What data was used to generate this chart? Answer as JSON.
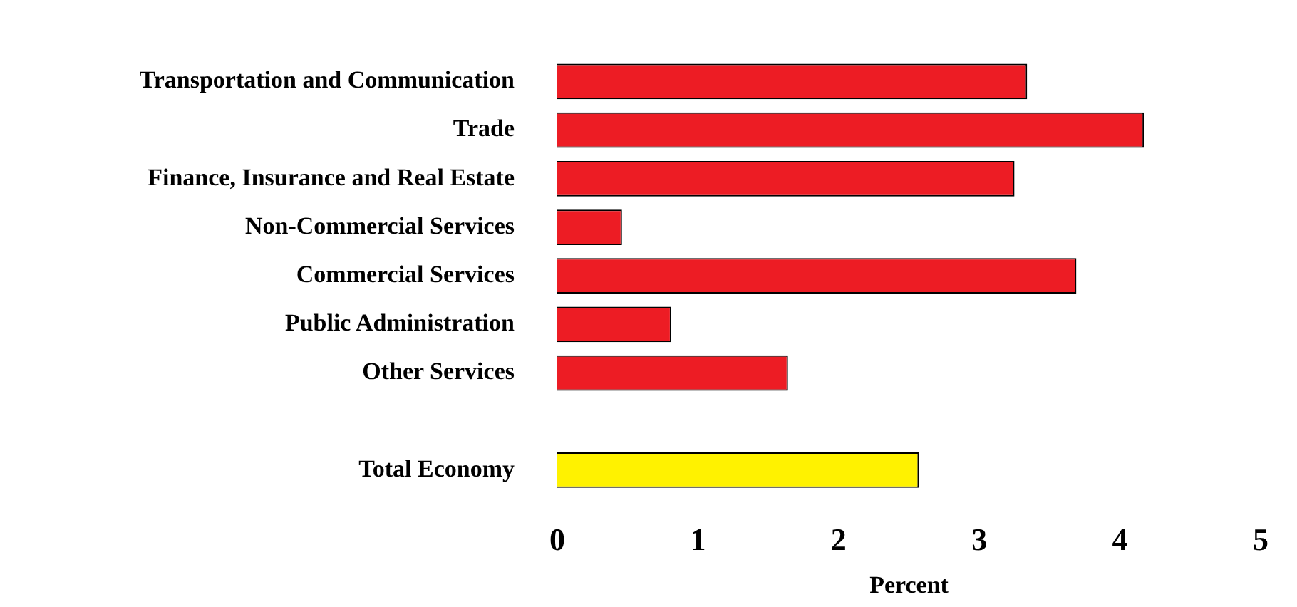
{
  "chart_data": {
    "type": "bar",
    "orientation": "horizontal",
    "xlabel": "Percent",
    "categories": [
      "Transportation and Communication",
      "Trade",
      "Finance, Insurance and Real Estate",
      "Non-Commercial Services",
      "Commercial Services",
      "Public Administration",
      "Other Services",
      null,
      "Total Economy"
    ],
    "values": [
      3.34,
      4.17,
      3.25,
      0.46,
      3.69,
      0.81,
      1.64,
      null,
      2.57
    ],
    "colors": [
      "#ed1c24",
      "#ed1c24",
      "#ed1c24",
      "#ed1c24",
      "#ed1c24",
      "#ed1c24",
      "#ed1c24",
      "#ed1c24",
      "#fff200"
    ],
    "xlim": [
      0,
      5
    ],
    "xticks": [
      0,
      1,
      2,
      3,
      4,
      5
    ],
    "grid": false,
    "legend": false
  }
}
